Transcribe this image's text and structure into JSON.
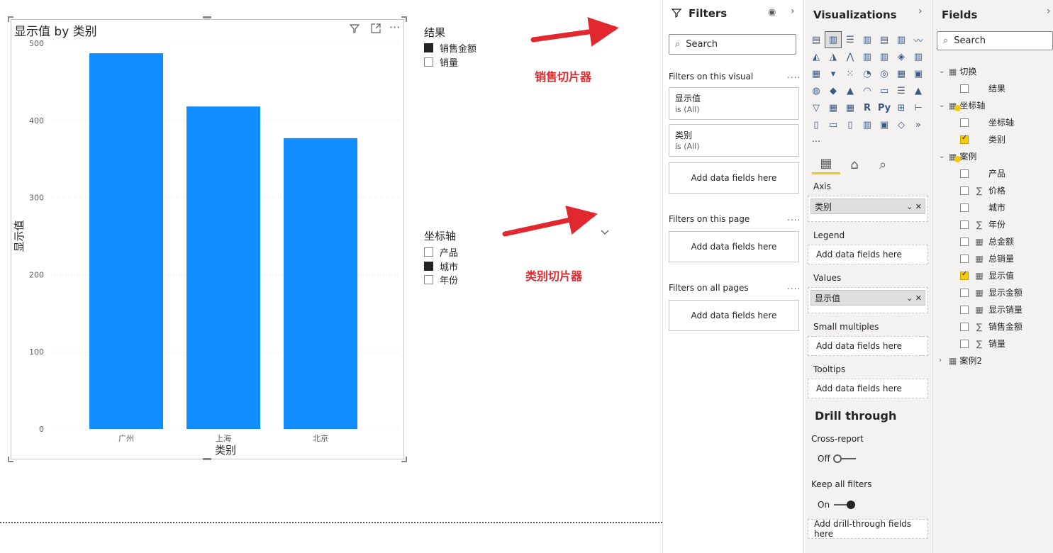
{
  "canvas": {
    "chart": {
      "title": "显示值 by 类别",
      "icons": [
        "filter-icon",
        "focus-mode-icon",
        "more-options-icon"
      ]
    },
    "slicer_result": {
      "title": "结果",
      "items": [
        {
          "label": "销售金额",
          "selected": true
        },
        {
          "label": "销量",
          "selected": false
        }
      ]
    },
    "slicer_axis": {
      "title": "坐标轴",
      "items": [
        {
          "label": "产品",
          "selected": false
        },
        {
          "label": "城市",
          "selected": true
        },
        {
          "label": "年份",
          "selected": false
        }
      ]
    },
    "annotations": {
      "sales_slicer": "销售切片器",
      "category_slicer": "类别切片器",
      "arrow_color": "#e0282e"
    }
  },
  "chart_data": {
    "type": "bar",
    "title": "显示值 by 类别",
    "categories": [
      "广州",
      "上海",
      "北京"
    ],
    "values": [
      487,
      418,
      377
    ],
    "xlabel": "类别",
    "ylabel": "显示值",
    "ylim": [
      0,
      500
    ],
    "yticks": [
      0,
      100,
      200,
      300,
      400,
      500
    ],
    "bar_color": "#118dff",
    "grid": true
  },
  "filters": {
    "title": "Filters",
    "search_placeholder": "Search",
    "on_visual_label": "Filters on this visual",
    "visual_filters": [
      {
        "name": "显示值",
        "value": "is (All)"
      },
      {
        "name": "类别",
        "value": "is (All)"
      }
    ],
    "add_label": "Add data fields here",
    "on_page_label": "Filters on this page",
    "on_all_label": "Filters on all pages",
    "more": "...."
  },
  "visualizations": {
    "title": "Visualizations",
    "axis_label": "Axis",
    "axis_field": "类别",
    "legend_label": "Legend",
    "values_label": "Values",
    "values_field": "显示值",
    "small_multiples_label": "Small multiples",
    "tooltips_label": "Tooltips",
    "add_label": "Add data fields here",
    "drill_title": "Drill through",
    "cross_report_label": "Cross-report",
    "cross_report_state": "Off",
    "keep_filters_label": "Keep all filters",
    "keep_filters_state": "On",
    "add_drill_label": "Add drill-through fields here",
    "accent": "#f2c811"
  },
  "fields": {
    "title": "Fields",
    "search_placeholder": "Search",
    "tables": [
      {
        "name": "切换",
        "fields": [
          {
            "name": "结果",
            "checked": false,
            "type": ""
          }
        ]
      },
      {
        "name": "坐标轴",
        "fields": [
          {
            "name": "坐标轴",
            "checked": false,
            "type": ""
          },
          {
            "name": "类别",
            "checked": true,
            "type": ""
          }
        ]
      },
      {
        "name": "案例",
        "fields": [
          {
            "name": "产品",
            "checked": false,
            "type": ""
          },
          {
            "name": "价格",
            "checked": false,
            "type": "∑"
          },
          {
            "name": "城市",
            "checked": false,
            "type": ""
          },
          {
            "name": "年份",
            "checked": false,
            "type": "∑"
          },
          {
            "name": "总金额",
            "checked": false,
            "type": "▦"
          },
          {
            "name": "总销量",
            "checked": false,
            "type": "▦"
          },
          {
            "name": "显示值",
            "checked": true,
            "type": "▦"
          },
          {
            "name": "显示金额",
            "checked": false,
            "type": "▦"
          },
          {
            "name": "显示销量",
            "checked": false,
            "type": "▦"
          },
          {
            "name": "销售金额",
            "checked": false,
            "type": "∑"
          },
          {
            "name": "销量",
            "checked": false,
            "type": "∑"
          }
        ]
      },
      {
        "name": "案例2",
        "fields": []
      }
    ]
  }
}
